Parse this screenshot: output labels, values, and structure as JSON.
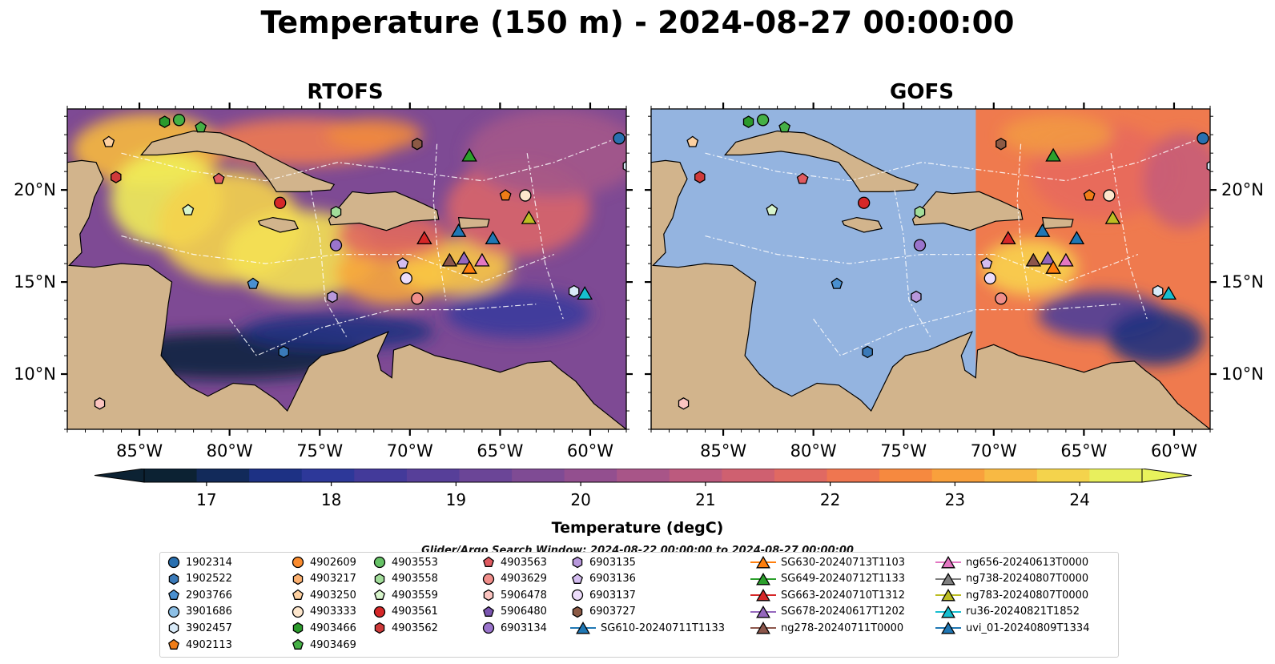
{
  "title": "Temperature (150 m) - 2024-08-27 00:00:00",
  "panels": [
    {
      "title": "RTOFS",
      "model": "rtofs"
    },
    {
      "title": "GOFS",
      "model": "gofs"
    }
  ],
  "map_extent": {
    "lon": [
      -89,
      -58
    ],
    "lat": [
      7,
      24.4
    ]
  },
  "lon_ticks": [
    {
      "lon": -85,
      "label": "85°W"
    },
    {
      "lon": -80,
      "label": "80°W"
    },
    {
      "lon": -75,
      "label": "75°W"
    },
    {
      "lon": -70,
      "label": "70°W"
    },
    {
      "lon": -65,
      "label": "65°W"
    },
    {
      "lon": -60,
      "label": "60°W"
    }
  ],
  "lat_ticks": [
    {
      "lat": 20,
      "label": "20°N"
    },
    {
      "lat": 15,
      "label": "15°N"
    },
    {
      "lat": 10,
      "label": "10°N"
    }
  ],
  "colorbar": {
    "label": "Temperature (degC)",
    "min": 16.5,
    "max": 24.5,
    "step": 0.5,
    "ticks": [
      "17",
      "18",
      "19",
      "20",
      "21",
      "22",
      "23",
      "24"
    ],
    "tick_values": [
      17,
      18,
      19,
      20,
      21,
      22,
      23,
      24
    ],
    "colors": [
      "#0c2233",
      "#122a5a",
      "#1d3184",
      "#2d3899",
      "#433a9a",
      "#573f99",
      "#6b4597",
      "#7f4b94",
      "#934f8f",
      "#a85588",
      "#bc5a7e",
      "#cf6070",
      "#e06962",
      "#ef7650",
      "#f6893f",
      "#f9a03c",
      "#f8b943",
      "#f4d34c",
      "#e8ef5d"
    ],
    "over_color": "#e8f25c",
    "under_color": "#0c2233"
  },
  "colors": {
    "land": "#d2b48c",
    "ocean_mask": "#94b4e0"
  },
  "search_window": "Glider/Argo Search Window: 2024-08-22 00:00:00 to 2024-08-27 00:00:00",
  "legend": {
    "columns": [
      [
        {
          "label": "1902314",
          "marker": "circle",
          "color": "#2970b0"
        },
        {
          "label": "1902522",
          "marker": "hexagon",
          "color": "#3a7ab9"
        },
        {
          "label": "2903766",
          "marker": "pentagon",
          "color": "#4a90d0"
        },
        {
          "label": "3901686",
          "marker": "circle",
          "color": "#8dc0e6"
        },
        {
          "label": "3902457",
          "marker": "hexagon",
          "color": "#d8eaf8"
        },
        {
          "label": "4902113",
          "marker": "pentagon",
          "color": "#f07d17"
        }
      ],
      [
        {
          "label": "4902609",
          "marker": "circle",
          "color": "#fa8b2e"
        },
        {
          "label": "4903217",
          "marker": "hexagon",
          "color": "#fbb070"
        },
        {
          "label": "4903250",
          "marker": "pentagon",
          "color": "#fdd0a0"
        },
        {
          "label": "4903333",
          "marker": "circle",
          "color": "#fde6cc"
        },
        {
          "label": "4903466",
          "marker": "hexagon",
          "color": "#2c9a2c"
        },
        {
          "label": "4903469",
          "marker": "pentagon",
          "color": "#45b045"
        }
      ],
      [
        {
          "label": "4903553",
          "marker": "circle",
          "color": "#66c266"
        },
        {
          "label": "4903558",
          "marker": "hexagon",
          "color": "#a2dd9a"
        },
        {
          "label": "4903559",
          "marker": "pentagon",
          "color": "#d8f5cc"
        },
        {
          "label": "4903561",
          "marker": "circle",
          "color": "#d62728"
        },
        {
          "label": "4903562",
          "marker": "hexagon",
          "color": "#cf3a3a"
        }
      ],
      [
        {
          "label": "4903563",
          "marker": "pentagon",
          "color": "#e05a60"
        },
        {
          "label": "4903629",
          "marker": "circle",
          "color": "#f08e8a"
        },
        {
          "label": "5906478",
          "marker": "hexagon",
          "color": "#fbc4c0"
        },
        {
          "label": "5906480",
          "marker": "pentagon",
          "color": "#7a55b0"
        },
        {
          "label": "6903134",
          "marker": "circle",
          "color": "#9a74cc"
        }
      ],
      [
        {
          "label": "6903135",
          "marker": "hexagon",
          "color": "#b898dc"
        },
        {
          "label": "6903136",
          "marker": "pentagon",
          "color": "#d4bdf0"
        },
        {
          "label": "6903137",
          "marker": "circle",
          "color": "#ecdcfa"
        },
        {
          "label": "6903727",
          "marker": "hexagon",
          "color": "#8c5a45"
        },
        {
          "label": "SG610-20240711T1133",
          "marker": "triangle-line",
          "color": "#1f77b4"
        }
      ],
      [
        {
          "label": "SG630-20240713T1103",
          "marker": "triangle-line",
          "color": "#ff7f0e"
        },
        {
          "label": "SG649-20240712T1133",
          "marker": "triangle-line",
          "color": "#2ca02c"
        },
        {
          "label": "SG663-20240710T1312",
          "marker": "triangle-line",
          "color": "#d62728"
        },
        {
          "label": "SG678-20240617T1202",
          "marker": "triangle-line",
          "color": "#9467bd"
        },
        {
          "label": "ng278-20240711T0000",
          "marker": "triangle-line",
          "color": "#8c564b"
        }
      ],
      [
        {
          "label": "ng656-20240613T0000",
          "marker": "triangle-line",
          "color": "#e377c2"
        },
        {
          "label": "ng738-20240807T0000",
          "marker": "triangle-line",
          "color": "#7f7f7f"
        },
        {
          "label": "ng783-20240807T0000",
          "marker": "triangle-line",
          "color": "#bcbd22"
        },
        {
          "label": "ru36-20240821T1852",
          "marker": "triangle-line",
          "color": "#17becf"
        },
        {
          "label": "uvi_01-20240809T1334",
          "marker": "triangle-line",
          "color": "#1f77b4"
        }
      ]
    ]
  },
  "markers": [
    {
      "lon": -82.8,
      "lat": 23.8,
      "marker": "circle",
      "color": "#45b045"
    },
    {
      "lon": -83.6,
      "lat": 23.7,
      "marker": "hexagon",
      "color": "#2c9a2c"
    },
    {
      "lon": -81.6,
      "lat": 23.4,
      "marker": "pentagon",
      "color": "#45b045"
    },
    {
      "lon": -86.7,
      "lat": 22.6,
      "marker": "pentagon",
      "color": "#fdd0a0"
    },
    {
      "lon": -86.3,
      "lat": 20.7,
      "marker": "hexagon",
      "color": "#cf3a3a"
    },
    {
      "lon": -80.6,
      "lat": 20.6,
      "marker": "pentagon",
      "color": "#e05a60"
    },
    {
      "lon": -82.3,
      "lat": 18.9,
      "marker": "pentagon",
      "color": "#d8f5cc"
    },
    {
      "lon": -77.2,
      "lat": 19.3,
      "marker": "circle",
      "color": "#d62728"
    },
    {
      "lon": -74.1,
      "lat": 18.8,
      "marker": "hexagon",
      "color": "#a2dd9a"
    },
    {
      "lon": -69.6,
      "lat": 22.5,
      "marker": "hexagon",
      "color": "#8c5a45"
    },
    {
      "lon": -58.4,
      "lat": 22.8,
      "marker": "circle",
      "color": "#2970b0"
    },
    {
      "lon": -57.9,
      "lat": 21.3,
      "marker": "hexagon",
      "color": "#d8eaf8"
    },
    {
      "lon": -64.7,
      "lat": 19.7,
      "marker": "pentagon",
      "color": "#f07d17"
    },
    {
      "lon": -63.6,
      "lat": 19.7,
      "marker": "circle",
      "color": "#fde6cc"
    },
    {
      "lon": -74.1,
      "lat": 17.0,
      "marker": "circle",
      "color": "#9a74cc"
    },
    {
      "lon": -70.4,
      "lat": 16.0,
      "marker": "pentagon",
      "color": "#d4bdf0"
    },
    {
      "lon": -70.2,
      "lat": 15.2,
      "marker": "circle",
      "color": "#ecdcfa"
    },
    {
      "lon": -74.3,
      "lat": 14.2,
      "marker": "hexagon",
      "color": "#b898dc"
    },
    {
      "lon": -69.6,
      "lat": 14.1,
      "marker": "circle",
      "color": "#f08e8a"
    },
    {
      "lon": -78.7,
      "lat": 14.9,
      "marker": "pentagon",
      "color": "#4a90d0"
    },
    {
      "lon": -77.0,
      "lat": 11.2,
      "marker": "hexagon",
      "color": "#3a7ab9"
    },
    {
      "lon": -87.2,
      "lat": 8.4,
      "marker": "hexagon",
      "color": "#fbc4c0"
    },
    {
      "lon": -60.9,
      "lat": 14.5,
      "marker": "hexagon",
      "color": "#d8eaf8"
    },
    {
      "lon": -66.7,
      "lat": 21.9,
      "marker": "triangle",
      "color": "#2ca02c"
    },
    {
      "lon": -63.4,
      "lat": 18.5,
      "marker": "triangle",
      "color": "#bcbd22"
    },
    {
      "lon": -65.4,
      "lat": 17.4,
      "marker": "triangle",
      "color": "#1f77b4"
    },
    {
      "lon": -67.3,
      "lat": 17.8,
      "marker": "triangle",
      "color": "#1f77b4"
    },
    {
      "lon": -69.2,
      "lat": 17.4,
      "marker": "triangle",
      "color": "#d62728"
    },
    {
      "lon": -67.8,
      "lat": 16.2,
      "marker": "triangle",
      "color": "#8c564b"
    },
    {
      "lon": -67.0,
      "lat": 16.3,
      "marker": "triangle",
      "color": "#9467bd"
    },
    {
      "lon": -66.0,
      "lat": 16.2,
      "marker": "triangle",
      "color": "#e377c2"
    },
    {
      "lon": -66.7,
      "lat": 15.8,
      "marker": "triangle",
      "color": "#ff7f0e"
    },
    {
      "lon": -60.3,
      "lat": 14.4,
      "marker": "triangle",
      "color": "#17becf"
    }
  ]
}
